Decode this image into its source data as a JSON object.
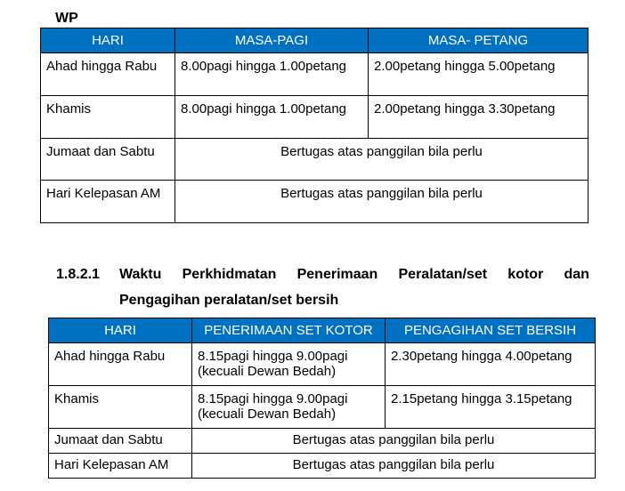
{
  "section1": {
    "label": "WP",
    "headers": [
      "HARI",
      "MASA-PAGI",
      "MASA- PETANG"
    ],
    "rows": [
      {
        "day": "Ahad hingga Rabu",
        "pagi": "8.00pagi hingga 1.00petang",
        "petang": "2.00petang hingga 5.00petang"
      },
      {
        "day": "Khamis",
        "pagi": "8.00pagi hingga 1.00petang",
        "petang": "2.00petang hingga 3.30petang"
      },
      {
        "day": "Jumaat dan Sabtu",
        "merged": "Bertugas atas panggilan bila perlu"
      },
      {
        "day": "Hari Kelepasan AM",
        "merged": "Bertugas atas panggilan bila perlu"
      }
    ]
  },
  "section2": {
    "number": "1.8.2.1",
    "title_words": [
      "Waktu",
      "Perkhidmatan",
      "Penerimaan",
      "Peralatan/set",
      "kotor",
      "dan"
    ],
    "title_line2": "Pengagihan peralatan/set bersih",
    "headers": [
      "HARI",
      "PENERIMAAN SET KOTOR",
      "PENGAGIHAN SET BERSIH"
    ],
    "rows": [
      {
        "day": "Ahad hingga Rabu",
        "kotor": "8.15pagi hingga 9.00pagi",
        "kotor_note": "(kecuali Dewan Bedah)",
        "bersih": "2.30petang hingga 4.00petang"
      },
      {
        "day": "Khamis",
        "kotor": "8.15pagi hingga 9.00pagi",
        "kotor_note": "(kecuali Dewan Bedah)",
        "bersih": "2.15petang hingga 3.15petang"
      },
      {
        "day": "Jumaat dan Sabtu",
        "merged": "Bertugas atas panggilan bila perlu"
      },
      {
        "day": "Hari Kelepasan AM",
        "merged": "Bertugas atas panggilan bila perlu"
      }
    ]
  }
}
